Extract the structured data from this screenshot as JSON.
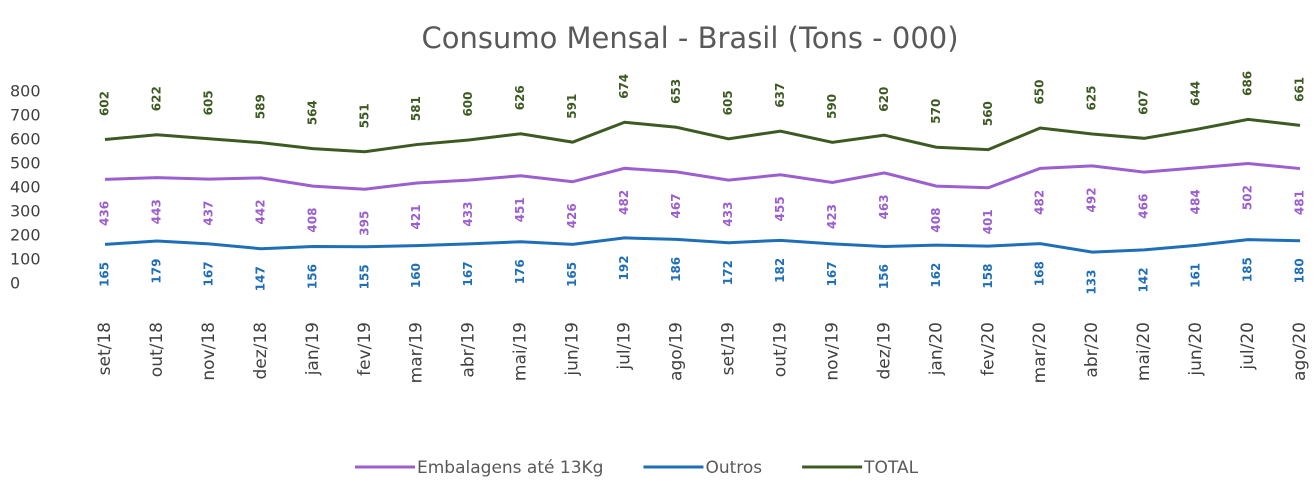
{
  "chart_data": {
    "type": "line",
    "title": "Consumo Mensal - Brasil (Tons - 000)",
    "categories": [
      "set/18",
      "out/18",
      "nov/18",
      "dez/18",
      "jan/19",
      "fev/19",
      "mar/19",
      "abr/19",
      "mai/19",
      "jun/19",
      "jul/19",
      "ago/19",
      "set/19",
      "out/19",
      "nov/19",
      "dez/19",
      "jan/20",
      "fev/20",
      "mar/20",
      "abr/20",
      "mai/20",
      "jun/20",
      "jul/20",
      "ago/20"
    ],
    "series": [
      {
        "name": "Embalagens até 13Kg",
        "color": "#9b5fd0",
        "values": [
          436,
          443,
          437,
          442,
          408,
          395,
          421,
          433,
          451,
          426,
          482,
          467,
          433,
          455,
          423,
          463,
          408,
          401,
          482,
          492,
          466,
          484,
          502,
          481
        ]
      },
      {
        "name": "Outros",
        "color": "#1f6fb8",
        "values": [
          165,
          179,
          167,
          147,
          156,
          155,
          160,
          167,
          176,
          165,
          192,
          186,
          172,
          182,
          167,
          156,
          162,
          158,
          168,
          133,
          142,
          161,
          185,
          180
        ]
      },
      {
        "name": "TOTAL",
        "color": "#3d5a23",
        "values": [
          602,
          622,
          605,
          589,
          564,
          551,
          581,
          600,
          626,
          591,
          674,
          653,
          605,
          637,
          590,
          620,
          570,
          560,
          650,
          625,
          607,
          644,
          686,
          661
        ]
      }
    ],
    "ylim": [
      0,
      800
    ],
    "yticks": [
      0,
      100,
      200,
      300,
      400,
      500,
      600,
      700,
      800
    ],
    "legend": "bottom"
  }
}
